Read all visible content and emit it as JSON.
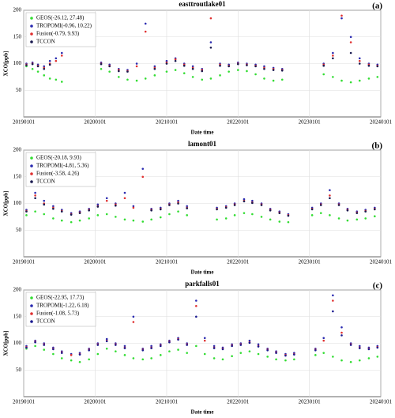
{
  "chart_data": [
    {
      "type": "scatter",
      "title": "easttroutlake01",
      "panel_label": "(a)",
      "x_label": "Date time",
      "y_label": "XCO[ppb]",
      "x": [
        "2019-01-15",
        "2019-02-15",
        "2019-03-15",
        "2019-04-15",
        "2019-05-15",
        "2019-06-15",
        "2019-07-15",
        "2020-02-01",
        "2020-03-15",
        "2020-05-01",
        "2020-06-15",
        "2020-08-01",
        "2020-09-15",
        "2020-11-01",
        "2021-01-01",
        "2021-02-15",
        "2021-04-01",
        "2021-05-15",
        "2021-07-01",
        "2021-08-15",
        "2021-10-01",
        "2021-11-15",
        "2022-01-01",
        "2022-02-15",
        "2022-04-01",
        "2022-05-15",
        "2022-07-01",
        "2022-08-15",
        "2023-03-15",
        "2023-05-01",
        "2023-06-15",
        "2023-08-01",
        "2023-09-15",
        "2023-11-01",
        "2023-12-15"
      ],
      "series": [
        {
          "name": "GEOS(-26.12, 27.48)",
          "color": "#33dd33",
          "values": [
            95,
            90,
            85,
            78,
            72,
            70,
            66,
            90,
            85,
            75,
            70,
            68,
            72,
            78,
            85,
            88,
            82,
            75,
            70,
            72,
            78,
            85,
            88,
            86,
            80,
            72,
            68,
            70,
            80,
            75,
            68,
            65,
            68,
            72,
            75
          ]
        },
        {
          "name": "TROPOMI(-0.96, 10.22)",
          "color": "#2a2ab0",
          "values": [
            100,
            102,
            98,
            95,
            105,
            110,
            120,
            102,
            98,
            90,
            88,
            100,
            175,
            95,
            105,
            110,
            100,
            95,
            90,
            140,
            100,
            98,
            102,
            100,
            98,
            95,
            92,
            90,
            100,
            120,
            185,
            150,
            110,
            100,
            98
          ]
        },
        {
          "name": "Fusion(-0.79, 9.93)",
          "color": "#e03030",
          "values": [
            98,
            100,
            96,
            92,
            100,
            105,
            115,
            100,
            96,
            88,
            86,
            95,
            160,
            92,
            102,
            108,
            98,
            92,
            88,
            185,
            98,
            96,
            100,
            98,
            96,
            92,
            90,
            88,
            98,
            115,
            190,
            140,
            105,
            98,
            96
          ]
        },
        {
          "name": "TCCON",
          "color": "#1a1a50",
          "values": [
            97,
            99,
            95,
            90,
            98,
            null,
            null,
            99,
            95,
            86,
            85,
            null,
            null,
            90,
            100,
            105,
            96,
            90,
            86,
            130,
            96,
            95,
            99,
            97,
            95,
            90,
            88,
            87,
            96,
            110,
            null,
            120,
            100,
            96,
            95
          ]
        }
      ],
      "xlim": [
        "2019-01-01",
        "2024-01-01"
      ],
      "xticks": [
        {
          "value": "2019-01-01",
          "label": "20190101"
        },
        {
          "value": "2020-01-01",
          "label": "20200101"
        },
        {
          "value": "2021-01-01",
          "label": "20210101"
        },
        {
          "value": "2022-01-01",
          "label": "20220101"
        },
        {
          "value": "2023-01-01",
          "label": "20230101"
        },
        {
          "value": "2024-01-01",
          "label": "20240101"
        }
      ],
      "ylim": [
        0,
        200
      ],
      "yticks": [
        50,
        100,
        150,
        200
      ],
      "grid": true,
      "legend": "upper left"
    },
    {
      "type": "scatter",
      "title": "lamont01",
      "panel_label": "(b)",
      "x_label": "Date time",
      "y_label": "XCO[ppb]",
      "x": [
        "2019-01-15",
        "2019-03-01",
        "2019-04-15",
        "2019-06-01",
        "2019-07-15",
        "2019-09-01",
        "2019-10-15",
        "2019-12-01",
        "2020-01-15",
        "2020-03-01",
        "2020-04-15",
        "2020-06-01",
        "2020-07-15",
        "2020-09-01",
        "2020-10-15",
        "2020-12-01",
        "2021-01-15",
        "2021-03-01",
        "2021-04-15",
        "2021-09-15",
        "2021-11-01",
        "2021-12-15",
        "2022-02-01",
        "2022-03-15",
        "2022-05-01",
        "2022-06-15",
        "2022-08-01",
        "2022-09-15",
        "2023-01-15",
        "2023-03-01",
        "2023-04-15",
        "2023-06-01",
        "2023-07-15",
        "2023-09-01",
        "2023-10-15",
        "2023-12-01"
      ],
      "series": [
        {
          "name": "GEOS(-20.18, 9.93)",
          "color": "#33dd33",
          "values": [
            78,
            85,
            80,
            72,
            68,
            65,
            68,
            72,
            78,
            80,
            75,
            70,
            68,
            66,
            70,
            74,
            80,
            85,
            78,
            70,
            72,
            78,
            82,
            80,
            75,
            70,
            66,
            65,
            78,
            82,
            78,
            72,
            68,
            70,
            72,
            76
          ]
        },
        {
          "name": "TROPOMI(-4.81, 5.36)",
          "color": "#2a2ab0",
          "values": [
            88,
            120,
            105,
            95,
            88,
            82,
            85,
            90,
            98,
            110,
            100,
            120,
            95,
            165,
            90,
            92,
            100,
            105,
            95,
            92,
            95,
            100,
            108,
            105,
            100,
            90,
            85,
            80,
            92,
            100,
            125,
            100,
            90,
            85,
            88,
            92
          ]
        },
        {
          "name": "Fusion(-3.58, 4.26)",
          "color": "#e03030",
          "values": [
            86,
            115,
            100,
            92,
            86,
            80,
            83,
            88,
            95,
            105,
            98,
            110,
            92,
            150,
            88,
            90,
            98,
            102,
            92,
            90,
            93,
            98,
            105,
            102,
            98,
            88,
            83,
            78,
            90,
            98,
            115,
            98,
            88,
            83,
            86,
            90
          ]
        },
        {
          "name": "TCCON",
          "color": "#1a1a50",
          "values": [
            85,
            110,
            98,
            90,
            85,
            79,
            82,
            87,
            94,
            null,
            96,
            null,
            null,
            null,
            87,
            89,
            97,
            100,
            91,
            89,
            92,
            97,
            104,
            101,
            97,
            87,
            82,
            77,
            89,
            97,
            110,
            97,
            87,
            82,
            85,
            89
          ]
        }
      ],
      "xlim": [
        "2019-01-01",
        "2024-01-01"
      ],
      "xticks": [
        {
          "value": "2019-01-01",
          "label": "20190101"
        },
        {
          "value": "2020-01-01",
          "label": "20200101"
        },
        {
          "value": "2021-01-01",
          "label": "20210101"
        },
        {
          "value": "2022-01-01",
          "label": "20220101"
        },
        {
          "value": "2023-01-01",
          "label": "20230101"
        },
        {
          "value": "2024-01-01",
          "label": "20240101"
        }
      ],
      "ylim": [
        0,
        200
      ],
      "yticks": [
        50,
        100,
        150,
        200
      ],
      "grid": true,
      "legend": "upper left"
    },
    {
      "type": "scatter",
      "title": "parkfalls01",
      "panel_label": "(c)",
      "x_label": "Date time",
      "y_label": "XCO[ppb]",
      "x": [
        "2019-01-15",
        "2019-03-01",
        "2019-04-15",
        "2019-06-01",
        "2019-07-15",
        "2019-09-01",
        "2019-10-15",
        "2019-12-01",
        "2020-01-15",
        "2020-03-01",
        "2020-04-15",
        "2020-06-01",
        "2020-07-15",
        "2020-09-01",
        "2020-10-15",
        "2020-12-01",
        "2021-01-15",
        "2021-03-01",
        "2021-04-15",
        "2021-06-01",
        "2021-07-15",
        "2021-09-01",
        "2021-10-15",
        "2021-12-01",
        "2022-01-15",
        "2022-03-01",
        "2022-04-15",
        "2022-06-01",
        "2022-07-15",
        "2022-09-01",
        "2022-10-15",
        "2023-02-01",
        "2023-03-15",
        "2023-05-01",
        "2023-06-15",
        "2023-08-01",
        "2023-09-15",
        "2023-11-01",
        "2023-12-15"
      ],
      "series": [
        {
          "name": "GEOS(-22.95, 17.73)",
          "color": "#33dd33",
          "values": [
            90,
            95,
            88,
            80,
            72,
            68,
            65,
            70,
            80,
            90,
            85,
            78,
            72,
            70,
            72,
            78,
            85,
            88,
            82,
            95,
            80,
            72,
            70,
            76,
            82,
            85,
            80,
            75,
            70,
            68,
            70,
            78,
            82,
            75,
            68,
            65,
            68,
            72,
            75
          ]
        },
        {
          "name": "TROPOMI(-1.22, 6.18)",
          "color": "#2a2ab0",
          "values": [
            95,
            105,
            100,
            92,
            85,
            80,
            82,
            90,
            100,
            108,
            100,
            95,
            150,
            90,
            95,
            98,
            105,
            110,
            100,
            180,
            110,
            95,
            92,
            98,
            100,
            105,
            98,
            90,
            85,
            80,
            82,
            90,
            110,
            190,
            130,
            100,
            95,
            92,
            95
          ]
        },
        {
          "name": "Fusion(-1.08, 5.73)",
          "color": "#e03030",
          "values": [
            93,
            103,
            98,
            90,
            83,
            78,
            80,
            88,
            98,
            105,
            98,
            92,
            140,
            88,
            92,
            96,
            103,
            108,
            98,
            170,
            105,
            92,
            90,
            96,
            98,
            102,
            95,
            88,
            83,
            78,
            80,
            88,
            105,
            180,
            120,
            98,
            92,
            90,
            93
          ]
        },
        {
          "name": "TCCON",
          "color": "#1a1a90",
          "values": [
            92,
            102,
            97,
            89,
            82,
            null,
            79,
            87,
            97,
            104,
            97,
            91,
            null,
            87,
            91,
            95,
            102,
            107,
            97,
            150,
            null,
            91,
            89,
            95,
            97,
            101,
            94,
            87,
            82,
            77,
            79,
            87,
            null,
            160,
            115,
            97,
            91,
            89,
            92
          ]
        }
      ],
      "xlim": [
        "2019-01-01",
        "2024-01-01"
      ],
      "xticks": [
        {
          "value": "2019-01-01",
          "label": "20190101"
        },
        {
          "value": "2020-01-01",
          "label": "20200101"
        },
        {
          "value": "2021-01-01",
          "label": "20210101"
        },
        {
          "value": "2022-01-01",
          "label": "20220101"
        },
        {
          "value": "2023-01-01",
          "label": "20230101"
        },
        {
          "value": "2024-01-01",
          "label": "20240101"
        }
      ],
      "ylim": [
        0,
        200
      ],
      "yticks": [
        50,
        100,
        150,
        200
      ],
      "grid": true,
      "legend": "upper left"
    }
  ]
}
